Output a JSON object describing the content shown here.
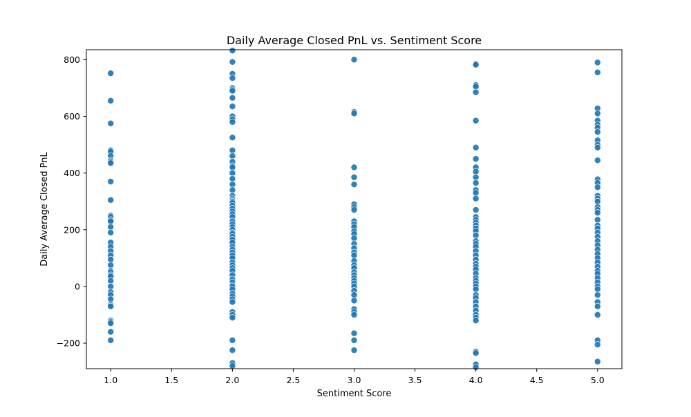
{
  "chart_data": {
    "type": "scatter",
    "title": "Daily Average Closed PnL vs. Sentiment Score",
    "xlabel": "Sentiment Score",
    "ylabel": "Daily Average Closed PnL",
    "xlim": [
      0.8,
      5.2
    ],
    "ylim": [
      -290,
      835
    ],
    "xticks": [
      1.0,
      1.5,
      2.0,
      2.5,
      3.0,
      3.5,
      4.0,
      4.5,
      5.0
    ],
    "xtick_labels": [
      "1.0",
      "1.5",
      "2.0",
      "2.5",
      "3.0",
      "3.5",
      "4.0",
      "4.5",
      "5.0"
    ],
    "yticks": [
      -200,
      0,
      200,
      400,
      600,
      800
    ],
    "ytick_labels": [
      "−200",
      "0",
      "200",
      "400",
      "600",
      "800"
    ],
    "grid": false,
    "point_color": "#1f77b4",
    "series": [
      {
        "x": 1,
        "y": [
          752,
          655,
          575,
          480,
          475,
          460,
          445,
          440,
          435,
          370,
          305,
          250,
          245,
          235,
          230,
          210,
          190,
          155,
          140,
          125,
          110,
          95,
          75,
          55,
          50,
          40,
          35,
          20,
          0,
          -20,
          -30,
          -45,
          -65,
          -70,
          -120,
          -125,
          -130,
          -160,
          -190
        ]
      },
      {
        "x": 2,
        "y": [
          832,
          792,
          750,
          735,
          700,
          695,
          690,
          665,
          635,
          600,
          590,
          580,
          525,
          480,
          460,
          440,
          425,
          420,
          400,
          380,
          360,
          340,
          320,
          310,
          305,
          300,
          295,
          285,
          275,
          265,
          255,
          245,
          230,
          220,
          210,
          200,
          190,
          185,
          175,
          165,
          155,
          140,
          130,
          120,
          110,
          100,
          85,
          75,
          65,
          55,
          40,
          25,
          15,
          5,
          0,
          -10,
          -25,
          -35,
          -45,
          -55,
          -90,
          -100,
          -110,
          -190,
          -225,
          -270,
          -280
        ]
      },
      {
        "x": 3,
        "y": [
          800,
          615,
          610,
          420,
          385,
          360,
          290,
          280,
          270,
          230,
          220,
          210,
          195,
          185,
          170,
          150,
          135,
          120,
          110,
          90,
          75,
          65,
          50,
          40,
          30,
          20,
          10,
          0,
          -15,
          -30,
          -50,
          -80,
          -90,
          -100,
          -165,
          -190,
          -225
        ]
      },
      {
        "x": 4,
        "y": [
          785,
          782,
          710,
          705,
          685,
          585,
          490,
          450,
          420,
          405,
          385,
          365,
          340,
          330,
          310,
          270,
          245,
          235,
          225,
          215,
          205,
          195,
          180,
          160,
          150,
          140,
          125,
          110,
          95,
          80,
          70,
          60,
          45,
          30,
          20,
          10,
          0,
          -10,
          -30,
          -40,
          -55,
          -70,
          -85,
          -100,
          -110,
          -120,
          -230,
          -235,
          -275,
          -285
        ]
      },
      {
        "x": 5,
        "y": [
          790,
          755,
          628,
          610,
          585,
          570,
          560,
          545,
          515,
          500,
          490,
          445,
          378,
          365,
          350,
          320,
          310,
          300,
          280,
          270,
          260,
          235,
          215,
          205,
          190,
          175,
          160,
          145,
          130,
          115,
          100,
          85,
          70,
          55,
          45,
          30,
          15,
          0,
          -10,
          -30,
          -55,
          -70,
          -100,
          -190,
          -205,
          -265
        ]
      }
    ]
  }
}
